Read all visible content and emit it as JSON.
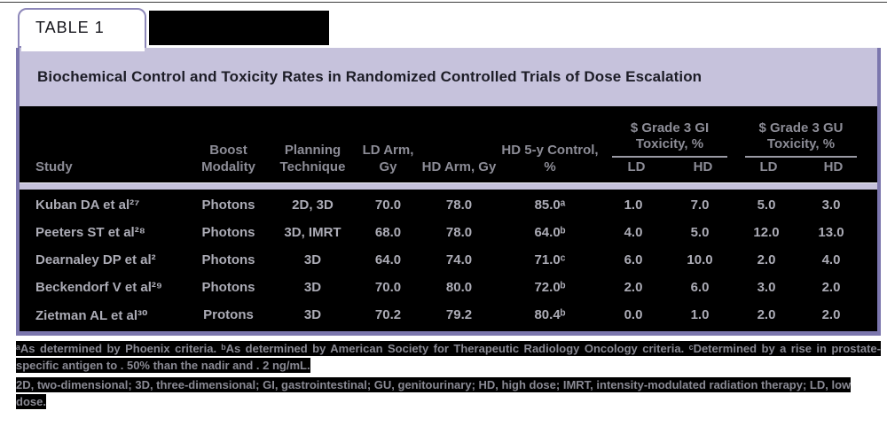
{
  "tab_label": "TABLE 1",
  "title": "Biochemical Control and Toxicity Rates in Randomized Controlled Trials of Dose Escalation",
  "table": {
    "columns": [
      "Study",
      "Boost Modality",
      "Planning Technique",
      "LD Arm, Gy",
      "HD Arm, Gy",
      "HD 5-y Control, %"
    ],
    "groups": [
      {
        "label": "$ Grade 3 GI Toxicity, %",
        "sub": [
          "LD",
          "HD"
        ]
      },
      {
        "label": "$ Grade 3 GU Toxicity, %",
        "sub": [
          "LD",
          "HD"
        ]
      }
    ],
    "rows": [
      [
        "Kuban DA et al²⁷",
        "Photons",
        "2D, 3D",
        "70.0",
        "78.0",
        "85.0ᵃ",
        "1.0",
        "7.0",
        "5.0",
        "3.0"
      ],
      [
        "Peeters ST et al²⁸",
        "Photons",
        "3D, IMRT",
        "68.0",
        "78.0",
        "64.0ᵇ",
        "4.0",
        "5.0",
        "12.0",
        "13.0"
      ],
      [
        "Dearnaley DP et al²",
        "Photons",
        "3D",
        "64.0",
        "74.0",
        "71.0ᶜ",
        "6.0",
        "10.0",
        "2.0",
        "4.0"
      ],
      [
        "Beckendorf V et al²⁹",
        "Photons",
        "3D",
        "70.0",
        "80.0",
        "72.0ᵇ",
        "2.0",
        "6.0",
        "3.0",
        "2.0"
      ],
      [
        "Zietman AL et al³⁰",
        "Protons",
        "3D",
        "70.2",
        "79.2",
        "80.4ᵇ",
        "0.0",
        "1.0",
        "2.0",
        "2.0"
      ]
    ]
  },
  "footnotes": {
    "criteria": "ᵃAs determined by Phoenix criteria. ᵇAs determined by American Society for Therapeutic Radiology Oncology criteria. ᶜDetermined by a rise in prostate-specific antigen to . 50% than the nadir and . 2 ng/mL.",
    "abbreviations": "2D, two-dimensional; 3D, three-dimensional; GI, gastrointestinal; GU, genitourinary; HD, high dose; IMRT, intensity-modulated radiation therapy; LD, low dose."
  },
  "colors": {
    "accent_purple": "#7b76ad",
    "band_lavender": "#c6c2dc",
    "table_background": "#000000",
    "table_text": "#acacb6"
  }
}
